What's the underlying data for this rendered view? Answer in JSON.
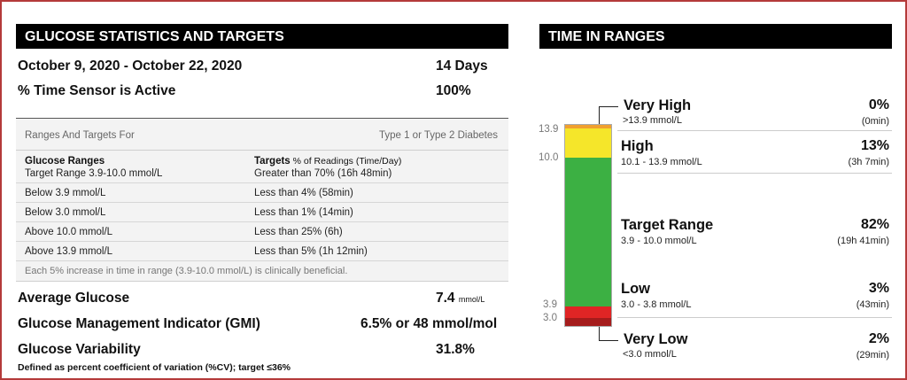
{
  "stats": {
    "title": "GLUCOSE STATISTICS AND TARGETS",
    "date_range": "October 9, 2020 - October 22, 2020",
    "days": "14 Days",
    "sensor_active_label": "% Time Sensor is Active",
    "sensor_active_value": "100%",
    "ranges_header_left": "Ranges And Targets For",
    "ranges_header_right": "Type 1 or Type 2 Diabetes",
    "col1_header": "Glucose Ranges",
    "col2_header_bold": "Targets",
    "col2_header_rest": " % of Readings (Time/Day)",
    "rows": [
      {
        "range": "Target Range 3.9-10.0 mmol/L",
        "target": "Greater than 70% (16h 48min)"
      },
      {
        "range": "Below 3.9 mmol/L",
        "target": "Less than 4% (58min)"
      },
      {
        "range": "Below 3.0 mmol/L",
        "target": "Less than 1% (14min)"
      },
      {
        "range": "Above 10.0 mmol/L",
        "target": "Less than 25% (6h)"
      },
      {
        "range": "Above 13.9 mmol/L",
        "target": "Less than 5% (1h 12min)"
      }
    ],
    "note": "Each 5% increase in time in range (3.9-10.0 mmol/L) is clinically beneficial.",
    "avg_glucose_label": "Average Glucose",
    "avg_glucose_value": "7.4",
    "avg_glucose_unit": "mmol/L",
    "gmi_label": "Glucose Management Indicator (GMI)",
    "gmi_value": "6.5% or 48 mmol/mol",
    "variability_label": "Glucose Variability",
    "variability_value": "31.8%",
    "variability_note": "Defined as percent coefficient of variation (%CV); target ≤36%"
  },
  "tir": {
    "title": "TIME IN RANGES",
    "ticks": [
      "13.9",
      "10.0",
      "3.9",
      "3.0"
    ],
    "segments": [
      {
        "name": "Very High",
        "range": ">13.9 mmol/L",
        "percent": "0%",
        "time": "(0min)",
        "color": "#f0a030"
      },
      {
        "name": "High",
        "range": "10.1 - 13.9 mmol/L",
        "percent": "13%",
        "time": "(3h 7min)",
        "color": "#f5e62a"
      },
      {
        "name": "Target Range",
        "range": "3.9 - 10.0 mmol/L",
        "percent": "82%",
        "time": "(19h 41min)",
        "color": "#3cb043"
      },
      {
        "name": "Low",
        "range": "3.0 - 3.8 mmol/L",
        "percent": "3%",
        "time": "(43min)",
        "color": "#e02525"
      },
      {
        "name": "Very Low",
        "range": "<3.0 mmol/L",
        "percent": "2%",
        "time": "(29min)",
        "color": "#a51c1c"
      }
    ]
  }
}
